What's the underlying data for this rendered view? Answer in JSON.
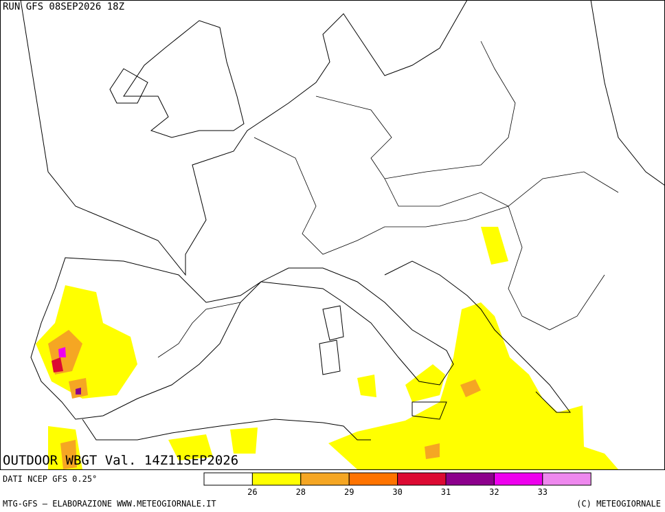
{
  "header": {
    "run": "RUN GFS 08SEP2026 18Z",
    "title": "OUTDOOR WBGT Val. 14Z11SEP2026"
  },
  "footer": {
    "source": "DATI NCEP GFS 0.25°",
    "credit": "MTG-GFS — ELABORAZIONE WWW.METEOGIORNALE.IT",
    "copyright": "(C) METEOGIORNALE"
  },
  "legend": {
    "colors": [
      "#ffffff",
      "#ffff00",
      "#f5a623",
      "#ff7300",
      "#dc0a32",
      "#8c008c",
      "#ee00ee",
      "#ee88ee"
    ],
    "ticks": [
      "26",
      "28",
      "29",
      "30",
      "31",
      "32",
      "33"
    ]
  }
}
